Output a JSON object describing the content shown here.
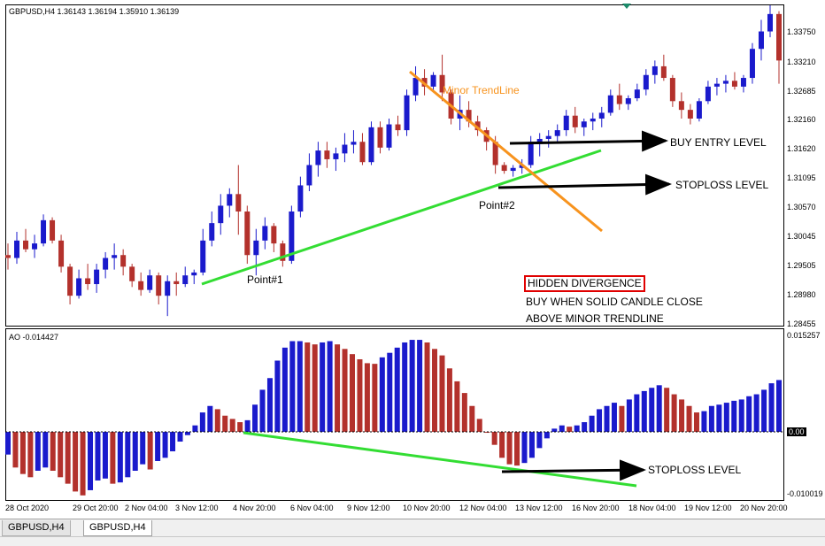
{
  "header": {
    "symbol_info": "GBPUSD,H4  1.36143 1.36194 1.35910 1.36139",
    "ao_info": "AO -0.014427"
  },
  "price_axis": [
    "1.33750",
    "1.33210",
    "1.32685",
    "1.32160",
    "1.31620",
    "1.31095",
    "1.30570",
    "1.30045",
    "1.29505",
    "1.28980",
    "1.28455"
  ],
  "ao_axis": [
    "0.015257",
    "0.00",
    "-0.010019"
  ],
  "date_axis": [
    "28 Oct 2020",
    "29 Oct 20:00",
    "2 Nov 04:00",
    "3 Nov 12:00",
    "4 Nov 20:00",
    "6 Nov 04:00",
    "9 Nov 12:00",
    "10 Nov 20:00",
    "12 Nov 04:00",
    "13 Nov 12:00",
    "16 Nov 20:00",
    "18 Nov 04:00",
    "19 Nov 12:00",
    "20 Nov 20:00"
  ],
  "annotations": {
    "minor_trendline": "Minor TrendLine",
    "buy_entry": "BUY ENTRY LEVEL",
    "stoploss_main": "STOPLOSS LEVEL",
    "point1": "Point#1",
    "point2": "Point#2",
    "hidden_divergence": "HIDDEN DIVERGENCE",
    "buy_rule_1": "BUY WHEN SOLID CANDLE CLOSE",
    "buy_rule_2": "ABOVE MINOR TRENDLINE",
    "stoploss_ao": "STOPLOSS LEVEL"
  },
  "tabs": [
    {
      "label": "GBPUSD,H4",
      "active": false
    },
    {
      "label": "GBPUSD,H4",
      "active": true
    }
  ],
  "colors": {
    "bull": "#1a1acc",
    "bear": "#b3312c",
    "green_line": "#33dd33",
    "orange_line": "#f7931e",
    "arrow": "#000000"
  },
  "chart_data": [
    {
      "type": "candlestick",
      "symbol": "GBPUSD,H4",
      "ylim": [
        1.2845,
        1.3395
      ],
      "candles": [
        [
          1.2965,
          1.2985,
          1.294,
          1.296
        ],
        [
          1.296,
          1.3005,
          1.295,
          1.299
        ],
        [
          1.299,
          1.301,
          1.297,
          1.2975
        ],
        [
          1.2975,
          1.3,
          1.296,
          1.2985
        ],
        [
          1.2985,
          1.3035,
          1.298,
          1.3025
        ],
        [
          1.3025,
          1.303,
          1.2985,
          1.299
        ],
        [
          1.299,
          1.3,
          1.2935,
          1.2945
        ],
        [
          1.2945,
          1.295,
          1.288,
          1.2895
        ],
        [
          1.2895,
          1.294,
          1.289,
          1.2925
        ],
        [
          1.2925,
          1.295,
          1.2905,
          1.2915
        ],
        [
          1.2915,
          1.295,
          1.29,
          1.294
        ],
        [
          1.294,
          1.297,
          1.2925,
          1.296
        ],
        [
          1.296,
          1.2985,
          1.294,
          1.2965
        ],
        [
          1.2965,
          1.2975,
          1.293,
          1.2945
        ],
        [
          1.2945,
          1.295,
          1.291,
          1.292
        ],
        [
          1.292,
          1.2935,
          1.2895,
          1.2905
        ],
        [
          1.2905,
          1.294,
          1.29,
          1.293
        ],
        [
          1.293,
          1.2935,
          1.288,
          1.2895
        ],
        [
          1.2895,
          1.293,
          1.286,
          1.292
        ],
        [
          1.292,
          1.2935,
          1.2895,
          1.2915
        ],
        [
          1.2915,
          1.2945,
          1.291,
          1.293
        ],
        [
          1.293,
          1.294,
          1.2915,
          1.2935
        ],
        [
          1.2935,
          1.301,
          1.293,
          1.299
        ],
        [
          1.299,
          1.304,
          1.298,
          1.302
        ],
        [
          1.302,
          1.307,
          1.3,
          1.305
        ],
        [
          1.305,
          1.308,
          1.303,
          1.307
        ],
        [
          1.307,
          1.312,
          1.3,
          1.304
        ],
        [
          1.304,
          1.305,
          1.295,
          1.2965
        ],
        [
          1.2965,
          1.301,
          1.293,
          1.299
        ],
        [
          1.299,
          1.303,
          1.2975,
          1.3015
        ],
        [
          1.3015,
          1.302,
          1.297,
          1.2985
        ],
        [
          1.2985,
          1.299,
          1.2945,
          1.2955
        ],
        [
          1.2955,
          1.305,
          1.295,
          1.304
        ],
        [
          1.304,
          1.31,
          1.303,
          1.3085
        ],
        [
          1.3085,
          1.314,
          1.3075,
          1.312
        ],
        [
          1.312,
          1.316,
          1.31,
          1.3145
        ],
        [
          1.3145,
          1.316,
          1.3115,
          1.313
        ],
        [
          1.313,
          1.315,
          1.311,
          1.314
        ],
        [
          1.314,
          1.3175,
          1.3125,
          1.3155
        ],
        [
          1.3155,
          1.318,
          1.314,
          1.316
        ],
        [
          1.316,
          1.3175,
          1.312,
          1.3125
        ],
        [
          1.3125,
          1.3195,
          1.312,
          1.3185
        ],
        [
          1.3185,
          1.3195,
          1.314,
          1.315
        ],
        [
          1.315,
          1.32,
          1.3145,
          1.319
        ],
        [
          1.319,
          1.3205,
          1.317,
          1.318
        ],
        [
          1.318,
          1.325,
          1.317,
          1.324
        ],
        [
          1.324,
          1.329,
          1.323,
          1.327
        ],
        [
          1.327,
          1.3285,
          1.324,
          1.3255
        ],
        [
          1.3255,
          1.328,
          1.3245,
          1.3275
        ],
        [
          1.3275,
          1.331,
          1.323,
          1.3245
        ],
        [
          1.3245,
          1.325,
          1.319,
          1.32
        ],
        [
          1.32,
          1.324,
          1.318,
          1.3215
        ],
        [
          1.3215,
          1.323,
          1.3185,
          1.3195
        ],
        [
          1.3195,
          1.3205,
          1.317,
          1.318
        ],
        [
          1.318,
          1.3185,
          1.3145,
          1.316
        ],
        [
          1.316,
          1.317,
          1.3105,
          1.312
        ],
        [
          1.312,
          1.3125,
          1.3105,
          1.311
        ],
        [
          1.311,
          1.312,
          1.31,
          1.3115
        ],
        [
          1.3115,
          1.313,
          1.3105,
          1.312
        ],
        [
          1.312,
          1.317,
          1.3115,
          1.316
        ],
        [
          1.316,
          1.3175,
          1.3135,
          1.3165
        ],
        [
          1.3165,
          1.318,
          1.315,
          1.317
        ],
        [
          1.317,
          1.319,
          1.316,
          1.318
        ],
        [
          1.318,
          1.3215,
          1.317,
          1.3205
        ],
        [
          1.3205,
          1.322,
          1.3175,
          1.3185
        ],
        [
          1.3185,
          1.32,
          1.317,
          1.3195
        ],
        [
          1.3195,
          1.321,
          1.318,
          1.32
        ],
        [
          1.32,
          1.322,
          1.3185,
          1.321
        ],
        [
          1.321,
          1.325,
          1.3205,
          1.324
        ],
        [
          1.324,
          1.326,
          1.3215,
          1.3225
        ],
        [
          1.3225,
          1.324,
          1.3215,
          1.3235
        ],
        [
          1.3235,
          1.326,
          1.323,
          1.325
        ],
        [
          1.325,
          1.3285,
          1.324,
          1.3275
        ],
        [
          1.3275,
          1.33,
          1.326,
          1.329
        ],
        [
          1.329,
          1.331,
          1.3265,
          1.327
        ],
        [
          1.327,
          1.3275,
          1.322,
          1.323
        ],
        [
          1.323,
          1.3245,
          1.32,
          1.3215
        ],
        [
          1.3215,
          1.3225,
          1.319,
          1.32
        ],
        [
          1.32,
          1.3235,
          1.3195,
          1.323
        ],
        [
          1.323,
          1.3265,
          1.3225,
          1.3255
        ],
        [
          1.3255,
          1.327,
          1.324,
          1.326
        ],
        [
          1.326,
          1.3275,
          1.3245,
          1.3265
        ],
        [
          1.3265,
          1.328,
          1.325,
          1.3255
        ],
        [
          1.3255,
          1.3275,
          1.3245,
          1.327
        ],
        [
          1.327,
          1.333,
          1.326,
          1.332
        ],
        [
          1.332,
          1.337,
          1.33,
          1.335
        ],
        [
          1.335,
          1.3395,
          1.334,
          1.338
        ],
        [
          1.338,
          1.3385,
          1.326,
          1.33
        ]
      ]
    },
    {
      "type": "bar",
      "series_name": "AO",
      "value_label": "-0.014427",
      "ylim": [
        -0.0101,
        0.0153
      ],
      "values": [
        -0.0035,
        -0.0055,
        -0.0065,
        -0.007,
        -0.006,
        -0.0055,
        -0.006,
        -0.007,
        -0.008,
        -0.0092,
        -0.0098,
        -0.009,
        -0.0075,
        -0.0072,
        -0.008,
        -0.0078,
        -0.007,
        -0.006,
        -0.005,
        -0.0058,
        -0.0045,
        -0.004,
        -0.003,
        -0.0015,
        -0.0005,
        0.001,
        0.003,
        0.004,
        0.0035,
        0.0025,
        0.002,
        0.0015,
        0.0018,
        0.0042,
        0.0065,
        0.0083,
        0.011,
        0.013,
        0.014,
        0.014,
        0.0138,
        0.0135,
        0.0138,
        0.014,
        0.0135,
        0.0128,
        0.012,
        0.0112,
        0.0106,
        0.0105,
        0.0115,
        0.0122,
        0.013,
        0.0138,
        0.0142,
        0.0142,
        0.0138,
        0.0128,
        0.0118,
        0.0098,
        0.0078,
        0.006,
        0.004,
        0.002,
        0.0,
        -0.002,
        -0.004,
        -0.005,
        -0.0052,
        -0.0048,
        -0.004,
        -0.0025,
        -0.001,
        0.0005,
        0.001,
        0.0008,
        0.001,
        0.0015,
        0.0025,
        0.0035,
        0.004,
        0.0045,
        0.004,
        0.005,
        0.0058,
        0.0063,
        0.0068,
        0.0072,
        0.0068,
        0.0058,
        0.005,
        0.004,
        0.003,
        0.0032,
        0.004,
        0.0042,
        0.0045,
        0.0048,
        0.005,
        0.0055,
        0.0058,
        0.0065,
        0.0075,
        0.008
      ]
    }
  ]
}
